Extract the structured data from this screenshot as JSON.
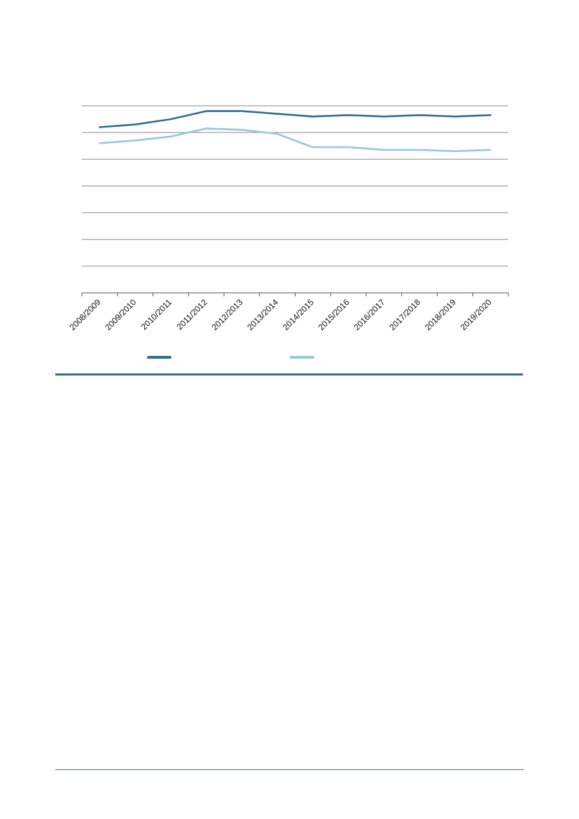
{
  "chart_data": {
    "type": "line",
    "categories": [
      "2008/2009",
      "2009/2010",
      "2010/2011",
      "2011/2012",
      "2012/2013",
      "2013/2014",
      "2014/2015",
      "2015/2016",
      "2016/2017",
      "2017/2018",
      "2018/2019",
      "2019/2020"
    ],
    "series": [
      {
        "values": [
          6.2,
          6.3,
          6.5,
          6.8,
          6.8,
          6.7,
          6.6,
          6.65,
          6.6,
          6.65,
          6.6,
          6.65
        ],
        "color": "#2e6f91"
      },
      {
        "values": [
          5.6,
          5.7,
          5.85,
          6.15,
          6.1,
          5.95,
          5.45,
          5.45,
          5.35,
          5.35,
          5.3,
          5.35
        ],
        "color": "#93cbd3"
      }
    ],
    "ylim": [
      0,
      7
    ],
    "yticks": [
      0,
      1,
      2,
      3,
      4,
      5,
      6,
      7
    ],
    "grid": true,
    "legend": "bottom",
    "colors": {
      "rule": "#2e6f91",
      "grid": "#8a8a8a"
    }
  }
}
